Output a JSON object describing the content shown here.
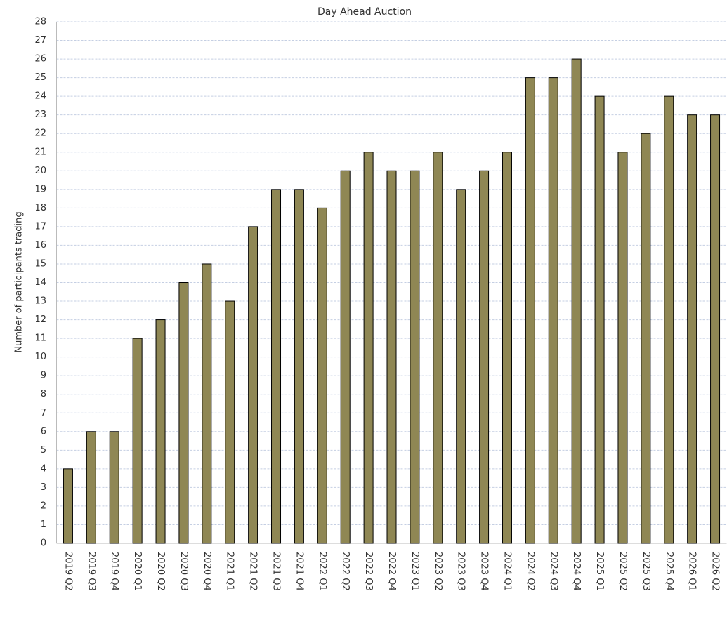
{
  "chart_data": {
    "type": "bar",
    "title": "Day Ahead Auction",
    "y_label": "Number of participants trading",
    "categories": [
      "2019 Q2",
      "2019 Q3",
      "2019 Q4",
      "2020 Q1",
      "2020 Q2",
      "2020 Q3",
      "2020 Q4",
      "2021 Q1",
      "2021 Q2",
      "2021 Q3",
      "2021 Q4",
      "2022 Q1",
      "2022 Q2",
      "2022 Q3",
      "2022 Q4",
      "2023 Q1",
      "2023 Q2",
      "2023 Q3",
      "2023 Q4",
      "2024 Q1",
      "2024 Q2",
      "2024 Q3",
      "2024 Q4",
      "2025 Q1",
      "2025 Q2",
      "2025 Q3",
      "2025 Q4",
      "2026 Q1",
      "2026 Q2"
    ],
    "values": [
      4,
      6,
      6,
      11,
      12,
      14,
      15,
      13,
      17,
      19,
      19,
      18,
      20,
      21,
      20,
      20,
      21,
      19,
      20,
      21,
      25,
      25,
      26,
      24,
      21,
      22,
      24,
      23,
      23
    ],
    "color": "#8f8754",
    "ylim": [
      0,
      28
    ],
    "yticks": [
      0,
      1,
      2,
      3,
      4,
      5,
      6,
      7,
      8,
      9,
      10,
      11,
      12,
      13,
      14,
      15,
      16,
      17,
      18,
      19,
      20,
      21,
      22,
      23,
      24,
      25,
      26,
      27,
      28
    ],
    "grid": true
  }
}
